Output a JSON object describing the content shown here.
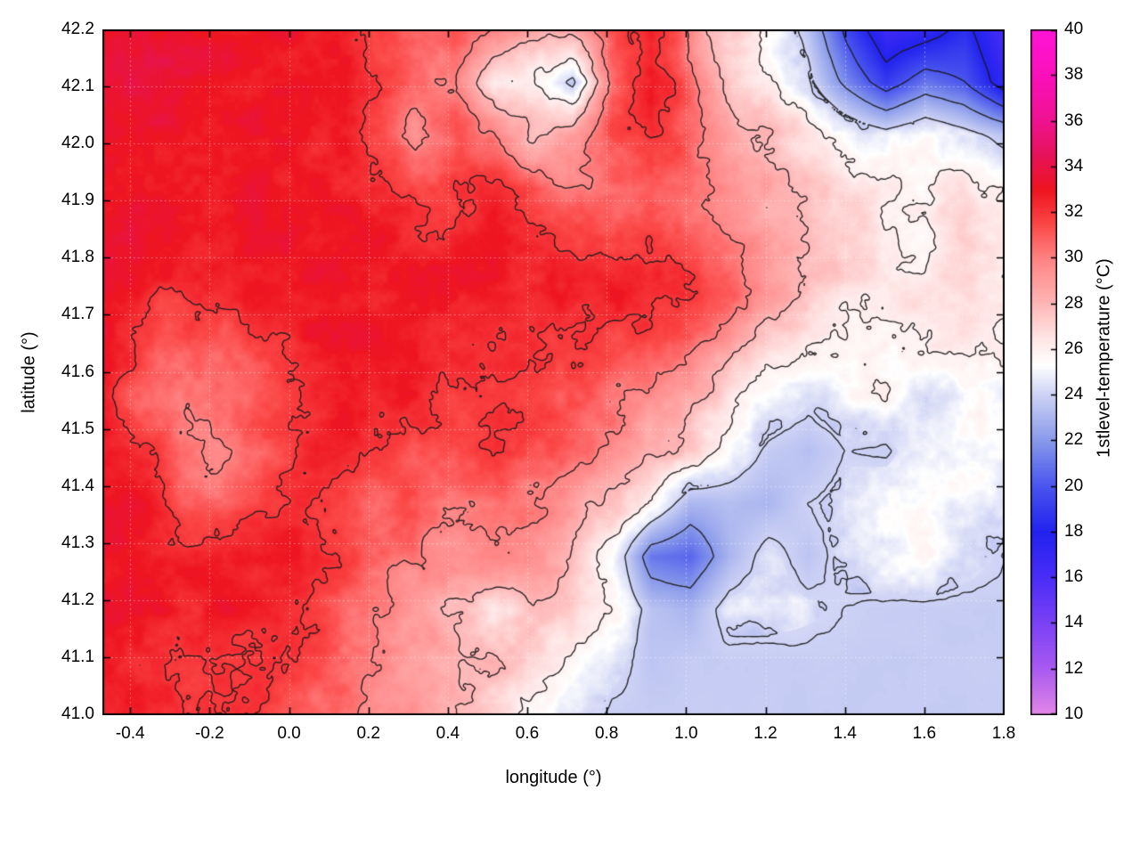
{
  "chart_data": {
    "type": "heatmap",
    "xlabel": "longitude (°)",
    "ylabel": "latitude (°)",
    "colorbar_label": "1stlevel-temperature (°C)",
    "x_range": [
      -0.47,
      1.8
    ],
    "y_range": [
      41.0,
      42.2
    ],
    "x_tick_values": [
      -0.4,
      -0.2,
      0.0,
      0.2,
      0.4,
      0.6,
      0.8,
      1.0,
      1.2,
      1.4,
      1.6,
      1.8
    ],
    "x_tick_labels": [
      "-0.4",
      "-0.2",
      "0.0",
      "0.2",
      "0.4",
      "0.6",
      "0.8",
      "1.0",
      "1.2",
      "1.4",
      "1.6",
      "1.8"
    ],
    "y_tick_values": [
      41.0,
      41.1,
      41.2,
      41.3,
      41.4,
      41.5,
      41.6,
      41.7,
      41.8,
      41.9,
      42.0,
      42.1,
      42.2
    ],
    "y_tick_labels": [
      "41.0",
      "41.1",
      "41.2",
      "41.3",
      "41.4",
      "41.5",
      "41.6",
      "41.7",
      "41.8",
      "41.9",
      "42.0",
      "42.1",
      "42.2"
    ],
    "colorbar_range": [
      10,
      40
    ],
    "colorbar_tick_values": [
      10,
      12,
      14,
      16,
      18,
      20,
      22,
      24,
      26,
      28,
      30,
      32,
      34,
      36,
      38,
      40
    ],
    "colorbar_tick_labels": [
      "10",
      "12",
      "14",
      "16",
      "18",
      "20",
      "22",
      "24",
      "26",
      "28",
      "30",
      "32",
      "34",
      "36",
      "38",
      "40"
    ],
    "palette_stops": [
      [
        10,
        "#e387e8"
      ],
      [
        12,
        "#a95af0"
      ],
      [
        14,
        "#7b41f5"
      ],
      [
        16,
        "#4a2df7"
      ],
      [
        18,
        "#2222ee"
      ],
      [
        20,
        "#4a55ee"
      ],
      [
        22,
        "#8899ea"
      ],
      [
        24,
        "#cdd2f4"
      ],
      [
        25.3,
        "#ffffff"
      ],
      [
        26.5,
        "#ffe4e4"
      ],
      [
        28,
        "#ffb6b6"
      ],
      [
        30,
        "#ff8282"
      ],
      [
        31.5,
        "#fb4646"
      ],
      [
        33,
        "#ee1420"
      ],
      [
        34.5,
        "#e6125a"
      ],
      [
        36,
        "#ef1290"
      ],
      [
        38,
        "#fb10bb"
      ],
      [
        40,
        "#ff14d6"
      ]
    ],
    "contour_levels": [
      18,
      20,
      22,
      24,
      26,
      28,
      30,
      32
    ],
    "contour_color": "#1a1a1a",
    "grid": true,
    "grid_color": "rgba(255,255,255,0.5)",
    "noise": {
      "octaves": [
        {
          "scale": 34,
          "amp": 0.5
        },
        {
          "scale": 11,
          "amp": 0.28
        },
        {
          "scale": 4.5,
          "amp": 0.12
        }
      ],
      "sea_threshold": 24.15,
      "sea_damping": 0.1
    },
    "grid_nx": 24,
    "grid_ny": 14,
    "temperature_grid": [
      [
        33.5,
        33.5,
        33.5,
        33.3,
        33.2,
        33.0,
        32.8,
        31.5,
        30.5,
        31.0,
        29.5,
        28.5,
        29.0,
        31.5,
        33.0,
        29.5,
        27.0,
        25.5,
        23.5,
        19.5,
        16.5,
        17.0,
        18.5,
        16.0
      ],
      [
        33.4,
        33.4,
        33.3,
        33.2,
        33.0,
        33.0,
        32.8,
        32.2,
        31.0,
        30.0,
        26.5,
        26.0,
        23.5,
        30.5,
        33.0,
        30.5,
        27.5,
        26.0,
        24.5,
        21.5,
        19.0,
        21.0,
        20.0,
        17.0
      ],
      [
        33.4,
        33.3,
        33.2,
        33.0,
        33.0,
        32.8,
        32.6,
        32.0,
        29.5,
        31.0,
        30.0,
        27.5,
        28.5,
        31.5,
        32.5,
        30.5,
        29.0,
        28.0,
        26.5,
        25.5,
        24.5,
        25.5,
        24.5,
        23.5
      ],
      [
        33.3,
        33.3,
        33.2,
        33.1,
        33.0,
        33.0,
        32.8,
        32.5,
        31.5,
        32.0,
        32.0,
        31.0,
        30.0,
        30.5,
        31.0,
        30.5,
        29.5,
        28.5,
        28.0,
        27.0,
        26.0,
        26.0,
        26.5,
        25.5
      ],
      [
        33.3,
        33.2,
        33.2,
        33.0,
        33.0,
        33.0,
        33.0,
        32.8,
        32.5,
        32.5,
        32.8,
        32.5,
        32.0,
        32.0,
        32.0,
        31.0,
        30.0,
        29.0,
        28.0,
        27.0,
        26.5,
        26.0,
        27.0,
        26.0
      ],
      [
        33.2,
        32.5,
        32.0,
        32.5,
        33.0,
        33.0,
        33.2,
        33.0,
        33.0,
        33.0,
        32.8,
        32.5,
        32.5,
        32.5,
        32.5,
        32.0,
        31.0,
        29.0,
        27.5,
        26.5,
        26.0,
        26.5,
        27.0,
        26.0
      ],
      [
        33.0,
        31.5,
        30.8,
        31.0,
        31.8,
        32.5,
        33.0,
        33.0,
        33.0,
        32.5,
        32.2,
        32.2,
        32.0,
        31.5,
        31.0,
        30.5,
        29.0,
        27.0,
        25.8,
        25.8,
        26.0,
        26.0,
        26.2,
        25.8
      ],
      [
        33.0,
        31.0,
        30.3,
        30.3,
        31.0,
        32.0,
        32.8,
        33.0,
        32.5,
        32.0,
        32.0,
        31.8,
        31.2,
        30.3,
        29.3,
        28.3,
        26.5,
        25.0,
        24.3,
        25.0,
        25.5,
        24.3,
        25.5,
        25.0
      ],
      [
        33.0,
        32.0,
        30.5,
        30.0,
        31.0,
        32.0,
        32.8,
        32.3,
        31.3,
        31.5,
        32.0,
        31.2,
        30.5,
        29.5,
        28.5,
        27.0,
        25.0,
        23.8,
        23.3,
        24.0,
        23.8,
        25.0,
        25.5,
        25.0
      ],
      [
        33.2,
        32.8,
        31.2,
        30.8,
        31.5,
        32.5,
        32.0,
        30.8,
        31.0,
        30.0,
        30.5,
        30.0,
        29.0,
        27.5,
        25.5,
        23.0,
        23.3,
        23.0,
        24.0,
        24.5,
        25.0,
        25.0,
        25.0,
        24.5
      ],
      [
        33.2,
        33.0,
        32.5,
        32.5,
        33.0,
        33.0,
        32.0,
        31.0,
        30.0,
        29.5,
        30.0,
        29.5,
        28.0,
        25.5,
        21.0,
        20.5,
        23.0,
        24.5,
        23.5,
        24.5,
        25.0,
        25.3,
        24.5,
        24.0
      ],
      [
        33.2,
        33.0,
        32.5,
        33.0,
        32.5,
        32.0,
        31.2,
        30.0,
        29.0,
        27.5,
        26.5,
        27.5,
        27.0,
        25.5,
        23.5,
        23.0,
        24.5,
        24.5,
        24.3,
        24.0,
        23.8,
        23.8,
        23.8,
        23.8
      ],
      [
        33.0,
        32.5,
        32.0,
        32.3,
        32.0,
        31.5,
        31.0,
        30.0,
        29.3,
        28.3,
        27.8,
        27.0,
        26.0,
        24.5,
        23.5,
        23.8,
        23.8,
        23.8,
        23.8,
        23.8,
        23.8,
        23.8,
        23.8,
        23.8
      ],
      [
        32.8,
        32.3,
        32.0,
        32.0,
        31.8,
        31.2,
        30.5,
        29.5,
        29.0,
        28.0,
        27.0,
        26.0,
        24.8,
        23.8,
        23.8,
        23.8,
        23.8,
        23.8,
        23.8,
        23.8,
        23.8,
        23.8,
        23.8,
        23.8
      ]
    ]
  }
}
